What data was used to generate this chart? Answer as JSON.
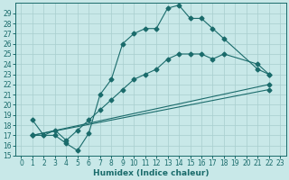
{
  "xlabel": "Humidex (Indice chaleur)",
  "bg_color": "#c8e8e8",
  "line_color": "#1a6b6b",
  "grid_color": "#a8cece",
  "xlim": [
    -0.5,
    23.5
  ],
  "ylim": [
    15,
    30
  ],
  "yticks": [
    15,
    16,
    17,
    18,
    19,
    20,
    21,
    22,
    23,
    24,
    25,
    26,
    27,
    28,
    29
  ],
  "xticks": [
    0,
    1,
    2,
    3,
    4,
    5,
    6,
    7,
    8,
    9,
    10,
    11,
    12,
    13,
    14,
    15,
    16,
    17,
    18,
    19,
    20,
    21,
    22,
    23
  ],
  "series1_x": [
    1,
    2,
    3,
    4,
    5,
    6,
    7,
    8,
    9,
    10,
    11,
    12,
    13,
    14,
    15,
    16,
    17,
    18,
    21,
    22
  ],
  "series1_y": [
    18.5,
    17.0,
    17.0,
    16.2,
    15.5,
    17.2,
    21.0,
    22.5,
    26.0,
    27.0,
    27.5,
    27.5,
    29.5,
    29.8,
    28.5,
    28.5,
    27.5,
    26.5,
    23.5,
    23.0
  ],
  "series2_x": [
    1,
    2,
    3,
    4,
    5,
    6,
    7,
    8,
    9,
    10,
    11,
    12,
    13,
    14,
    15,
    16,
    17,
    18,
    21,
    22
  ],
  "series2_y": [
    17.0,
    17.0,
    17.5,
    16.5,
    17.5,
    18.5,
    19.5,
    20.5,
    21.5,
    22.5,
    23.0,
    23.5,
    24.5,
    25.0,
    25.0,
    25.0,
    24.5,
    25.0,
    24.0,
    23.0
  ],
  "series3_x": [
    1,
    22
  ],
  "series3_y": [
    17.0,
    22.0
  ],
  "series4_x": [
    1,
    22
  ],
  "series4_y": [
    17.0,
    21.5
  ],
  "tick_fontsize": 5.5,
  "xlabel_fontsize": 6.5,
  "marker_size": 2.5,
  "linewidth": 0.8
}
